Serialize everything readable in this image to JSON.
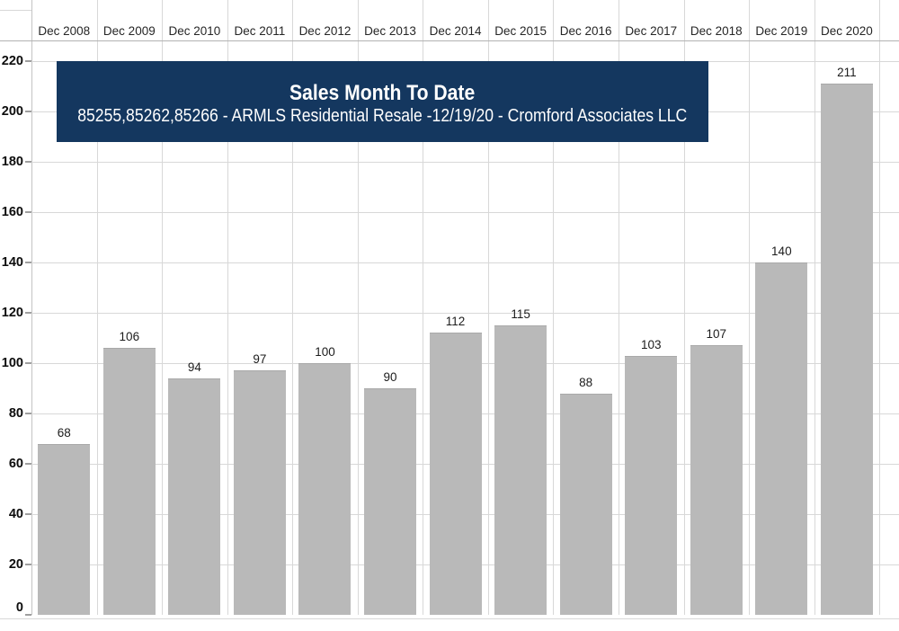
{
  "chart_data": {
    "type": "bar",
    "title": "Sales Month To Date",
    "subtitle": "85255,85262,85266 - ARMLS Residential Resale -12/19/20 - Cromford Associates LLC",
    "categories": [
      "Dec 2008",
      "Dec 2009",
      "Dec 2010",
      "Dec 2011",
      "Dec 2012",
      "Dec 2013",
      "Dec 2014",
      "Dec 2015",
      "Dec 2016",
      "Dec 2017",
      "Dec 2018",
      "Dec 2019",
      "Dec 2020"
    ],
    "values": [
      68,
      106,
      94,
      97,
      100,
      90,
      112,
      115,
      88,
      103,
      107,
      140,
      211
    ],
    "yticks": [
      0,
      20,
      40,
      60,
      80,
      100,
      120,
      140,
      160,
      180,
      200,
      220
    ],
    "ylim": [
      0,
      240
    ],
    "xlabel": "",
    "ylabel": "",
    "legend": "none",
    "grid": true,
    "x_axis_position": "top",
    "bar_value_labels_shown": true,
    "colors": {
      "bar": "#b9b9b9",
      "gridline": "#d8d8d8",
      "axis_line": "#b3b3b3",
      "title_box_bg": "#14375f",
      "title_text": "#ffffff",
      "tick_label": "#0d0d0d",
      "bar_label": "#1c1c1c"
    }
  }
}
